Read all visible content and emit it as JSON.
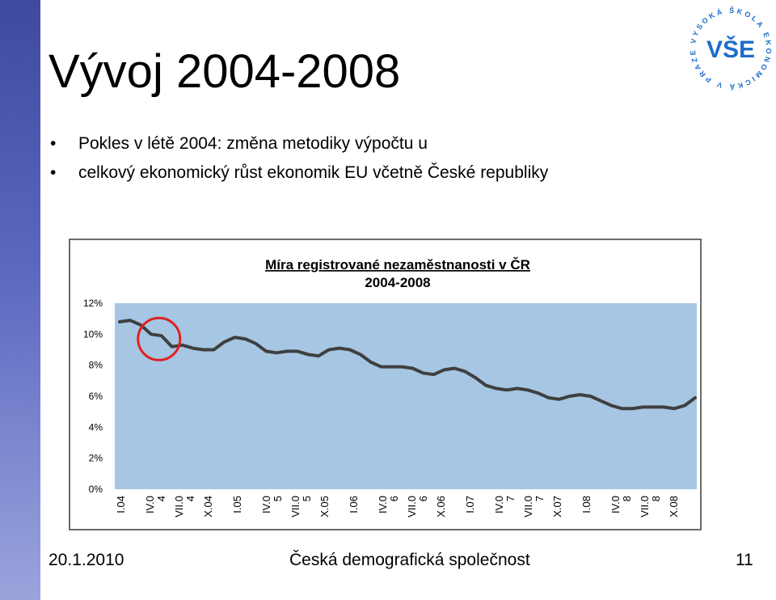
{
  "slide": {
    "title": "Vývoj 2004-2008",
    "bullets": [
      "Pokles v létě 2004: změna metodiky výpočtu u",
      "celkový ekonomický růst ekonomik EU včetně České republiky"
    ],
    "footer_date": "20.1.2010",
    "footer_center": "Česká demografická společnost",
    "page_number": "11"
  },
  "logo": {
    "ring_text": "VYSOKÁ ŠKOLA EKONOMICKÁ V PRAZE",
    "mark": "VŠE",
    "color": "#1e6ec8"
  },
  "chart_data": {
    "type": "line",
    "title": "Míra registrované nezaměstnanosti v ČR",
    "subtitle": "2004-2008",
    "xlabel": "",
    "ylabel": "",
    "ylim": [
      0,
      12
    ],
    "yticks": [
      "0%",
      "2%",
      "4%",
      "6%",
      "8%",
      "10%",
      "12%"
    ],
    "grid": false,
    "legend": "none",
    "plot_background": "#a6c6e3",
    "line_color": "#3f3f3f",
    "x_tick_labels": [
      "I.04",
      "IV.0\n4",
      "VII.0\n4",
      "X.04",
      "I.05",
      "IV.0\n5",
      "VII.0\n5",
      "X.05",
      "I.06",
      "IV.0\n6",
      "VII.0\n6",
      "X.06",
      "I.07",
      "IV.0\n7",
      "VII.0\n7",
      "X.07",
      "I.08",
      "IV.0\n8",
      "VII.0\n8",
      "X.08"
    ],
    "series": [
      {
        "values": [
          10.8,
          10.9,
          10.6,
          10.0,
          9.9,
          9.2,
          9.3,
          9.1,
          9.0,
          9.0,
          9.5,
          9.8,
          9.7,
          9.4,
          8.9,
          8.8,
          8.9,
          8.9,
          8.7,
          8.6,
          9.0,
          9.1,
          9.0,
          8.7,
          8.2,
          7.9,
          7.9,
          7.9,
          7.8,
          7.5,
          7.4,
          7.7,
          7.8,
          7.6,
          7.2,
          6.7,
          6.5,
          6.4,
          6.5,
          6.4,
          6.2,
          5.9,
          5.8,
          6.0,
          6.1,
          6.0,
          5.7,
          5.4,
          5.2,
          5.2,
          5.3,
          5.3,
          5.3,
          5.2,
          5.4,
          5.9
        ]
      }
    ],
    "annotation": {
      "type": "circle",
      "color": "#e02020",
      "target_index": 4
    }
  }
}
